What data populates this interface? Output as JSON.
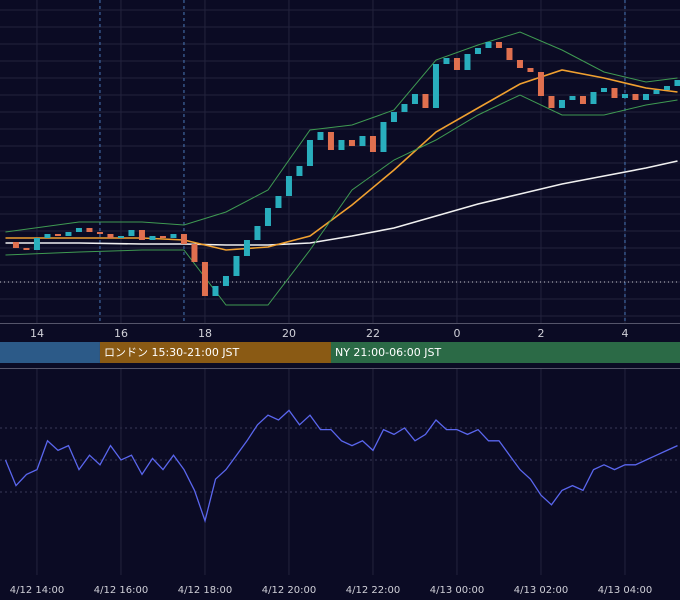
{
  "chart_data": {
    "type": "candlestick",
    "x": [
      13.25,
      13.5,
      13.75,
      14,
      14.25,
      14.5,
      14.75,
      15,
      15.25,
      15.5,
      15.75,
      16,
      16.25,
      16.5,
      16.75,
      17,
      17.25,
      17.5,
      17.75,
      18,
      18.25,
      18.5,
      18.75,
      19,
      19.25,
      19.5,
      19.75,
      20,
      20.25,
      20.5,
      20.75,
      21,
      21.25,
      21.5,
      21.75,
      22,
      22.25,
      22.5,
      22.75,
      23,
      23.25,
      23.5,
      23.75,
      24,
      24.25,
      24.5,
      24.75,
      25,
      25.25,
      25.5,
      25.75,
      26,
      26.25,
      26.5,
      26.75,
      27,
      27.25,
      27.5,
      27.75,
      28,
      28.25,
      28.5,
      28.75,
      29,
      29.25
    ],
    "close": [
      81,
      75,
      73,
      85,
      89,
      87,
      91,
      95,
      91,
      89,
      85,
      87,
      93,
      83,
      87,
      85,
      89,
      79,
      61,
      27,
      37,
      47,
      67,
      83,
      97,
      115,
      127,
      147,
      157,
      183,
      191,
      173,
      183,
      177,
      187,
      171,
      201,
      211,
      219,
      229,
      215,
      259,
      265,
      253,
      269,
      275,
      281,
      275,
      263,
      255,
      251,
      227,
      215,
      223,
      227,
      219,
      231,
      235,
      225,
      229,
      223,
      229,
      233,
      237,
      243
    ],
    "up_color": "#29aebd",
    "down_color": "#e0704f",
    "xlim": [
      13.12,
      29.31
    ],
    "ylim": [
      0,
      323
    ],
    "xticks": [
      14,
      16,
      18,
      20,
      22,
      {
        "value": 24,
        "label": "0"
      },
      {
        "value": 26,
        "label": "2"
      },
      {
        "value": 28,
        "label": "4"
      }
    ],
    "hline": 41,
    "vlines": [
      15.5,
      17.5,
      28
    ],
    "lines": [
      {
        "color": "#f0f0f0",
        "x": [
          13.25,
          15,
          16.5,
          17.5,
          18.5,
          19.5,
          20.5,
          21.5,
          22.5,
          23.5,
          24.5,
          25.5,
          26.5,
          27.5,
          28.5,
          29.25
        ],
        "values": [
          80,
          80,
          79,
          79,
          78,
          78,
          80,
          87,
          95,
          107,
          119,
          129,
          139,
          147,
          155,
          162
        ]
      },
      {
        "color": "#f0a030",
        "x": [
          13.25,
          15,
          16.5,
          17.5,
          18.5,
          19.5,
          20.5,
          21.5,
          22.5,
          23.5,
          24.5,
          25.5,
          26.5,
          27.5,
          28.5,
          29.25
        ],
        "values": [
          85,
          85,
          85,
          83,
          73,
          76,
          87,
          118,
          153,
          191,
          215,
          239,
          253,
          245,
          235,
          231
        ]
      },
      {
        "color": "#3f9a52",
        "x": [
          13.25,
          15,
          16.5,
          17.5,
          18.5,
          19.5,
          20.5,
          21.5,
          22.5,
          23.5,
          24.5,
          25.5,
          26.5,
          27.5,
          28.5,
          29.25
        ],
        "values": [
          91,
          101,
          101,
          98,
          111,
          133,
          193,
          198,
          213,
          263,
          278,
          291,
          273,
          251,
          241,
          245
        ]
      },
      {
        "color": "#3f9a52",
        "x": [
          13.25,
          15,
          16.5,
          17.5,
          18.5,
          19.5,
          20.5,
          21.5,
          22.5,
          23.5,
          24.5,
          25.5,
          26.5,
          27.5,
          28.5,
          29.25
        ],
        "values": [
          68,
          71,
          73,
          73,
          18,
          18,
          73,
          133,
          163,
          183,
          208,
          228,
          208,
          208,
          218,
          223
        ]
      }
    ],
    "sessions": [
      {
        "start": 9,
        "end": 15.5,
        "color": "#2c5a88"
      },
      {
        "label": "ロンドン 15:30-21:00 JST",
        "start": 15.5,
        "end": 21,
        "color": "#8a5a14"
      },
      {
        "label": "NY 21:00-06:00 JST",
        "start": 21,
        "end": 30,
        "color": "#2b6a46"
      }
    ],
    "oscillator": {
      "type": "line",
      "color": "#5a66ee",
      "values": [
        50,
        34,
        41,
        44,
        62,
        56,
        59,
        44,
        53,
        47,
        59,
        50,
        53,
        41,
        51,
        44,
        53,
        44,
        31,
        12,
        38,
        44,
        53,
        62,
        72,
        78,
        75,
        81,
        72,
        78,
        69,
        69,
        62,
        59,
        62,
        56,
        69,
        66,
        70,
        62,
        66,
        75,
        69,
        69,
        66,
        69,
        62,
        62,
        53,
        44,
        38,
        28,
        22,
        31,
        34,
        31,
        44,
        47,
        44,
        47,
        47,
        50,
        53,
        56,
        59
      ],
      "ylim": [
        0,
        100
      ],
      "yticks": [
        30,
        50,
        70
      ],
      "xticks": [
        {
          "value": 14,
          "label": "4/12 14:00"
        },
        {
          "value": 16,
          "label": "4/12 16:00"
        },
        {
          "value": 18,
          "label": "4/12 18:00"
        },
        {
          "value": 20,
          "label": "4/12 20:00"
        },
        {
          "value": 22,
          "label": "4/12 22:00"
        },
        {
          "value": 24,
          "label": "4/13 00:00"
        },
        {
          "value": 26,
          "label": "4/13 02:00"
        },
        {
          "value": 28,
          "label": "4/13 04:00"
        }
      ]
    }
  }
}
